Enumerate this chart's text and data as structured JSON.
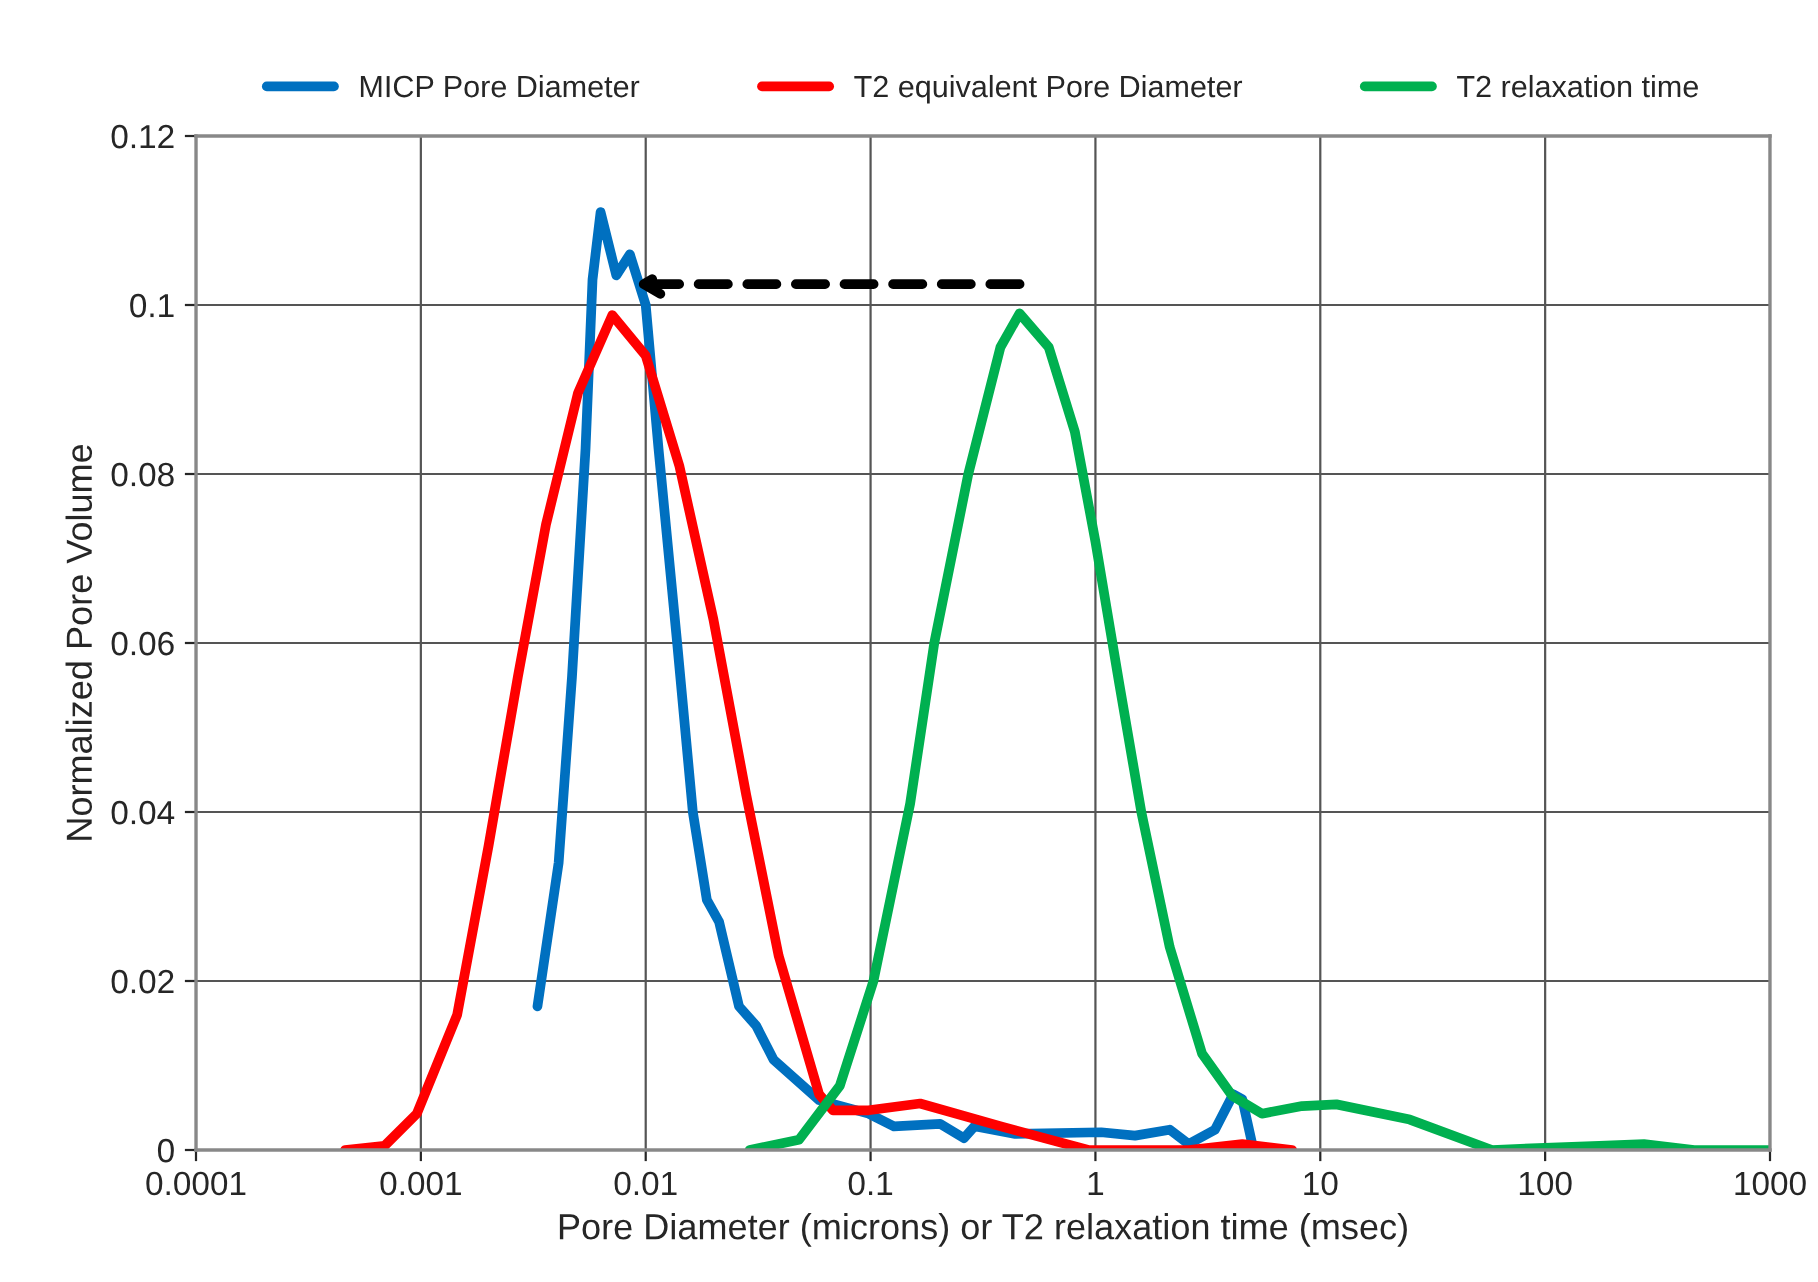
{
  "chart_data": {
    "type": "line",
    "xlabel": "Pore Diameter (microns) or T2 relaxation time (msec)",
    "ylabel": "Normalized Pore Volume",
    "log": "x",
    "xlim": [
      0.0001,
      1000
    ],
    "xticks": [
      0.0001,
      0.001,
      0.01,
      0.1,
      1,
      10,
      100,
      1000
    ],
    "ylim": [
      0,
      0.12
    ],
    "yticks": [
      0,
      0.02,
      0.04,
      0.06,
      0.08,
      0.1,
      0.12
    ],
    "grid": true,
    "legend": "top",
    "series": [
      {
        "name": "MICP Pore Diameter",
        "color": "#0070c0",
        "x": [
          0.0033,
          0.0041,
          0.0047,
          0.0054,
          0.0058,
          0.0063,
          0.0074,
          0.0085,
          0.01,
          0.0114,
          0.0138,
          0.0162,
          0.0187,
          0.0212,
          0.026,
          0.031,
          0.037,
          0.059,
          0.098,
          0.127,
          0.204,
          0.26,
          0.29,
          0.44,
          1.06,
          1.5,
          2.14,
          2.6,
          3.4,
          4.1,
          4.5,
          5.0
        ],
        "values": [
          0.017,
          0.034,
          0.056,
          0.083,
          0.103,
          0.111,
          0.1035,
          0.106,
          0.1,
          0.083,
          0.06,
          0.04,
          0.0296,
          0.027,
          0.017,
          0.0147,
          0.0107,
          0.0059,
          0.0043,
          0.0028,
          0.0031,
          0.0014,
          0.0028,
          0.0019,
          0.0021,
          0.0017,
          0.0024,
          0.0007,
          0.0024,
          0.0066,
          0.006,
          0.0005
        ]
      },
      {
        "name": "T2 equivalent Pore Diameter",
        "color": "#ff0000",
        "x": [
          0.00046,
          0.00069,
          0.00096,
          0.00145,
          0.002,
          0.0027,
          0.0036,
          0.005,
          0.0071,
          0.01,
          0.0141,
          0.02,
          0.028,
          0.039,
          0.059,
          0.068,
          0.098,
          0.166,
          0.38,
          0.93,
          2.6,
          4.5,
          7.5
        ],
        "values": [
          0,
          0.0005,
          0.0043,
          0.016,
          0.036,
          0.056,
          0.074,
          0.0896,
          0.0988,
          0.094,
          0.081,
          0.0628,
          0.042,
          0.023,
          0.0066,
          0.0047,
          0.0047,
          0.0055,
          0.0028,
          0,
          0,
          0.0007,
          0
        ]
      },
      {
        "name": "T2 relaxation time",
        "color": "#00b050",
        "x": [
          0.029,
          0.048,
          0.073,
          0.103,
          0.15,
          0.192,
          0.272,
          0.378,
          0.46,
          0.62,
          0.81,
          1.0,
          1.28,
          1.6,
          2.14,
          2.98,
          4.06,
          5.5,
          8.3,
          11.8,
          25,
          58,
          174,
          275,
          460,
          1000
        ],
        "values": [
          0,
          0.0012,
          0.0076,
          0.02,
          0.041,
          0.06,
          0.08,
          0.095,
          0.099,
          0.095,
          0.085,
          0.072,
          0.055,
          0.04,
          0.024,
          0.0114,
          0.0064,
          0.0043,
          0.0052,
          0.0054,
          0.0036,
          0,
          0.0005,
          0.0007,
          0,
          0
        ]
      }
    ]
  }
}
